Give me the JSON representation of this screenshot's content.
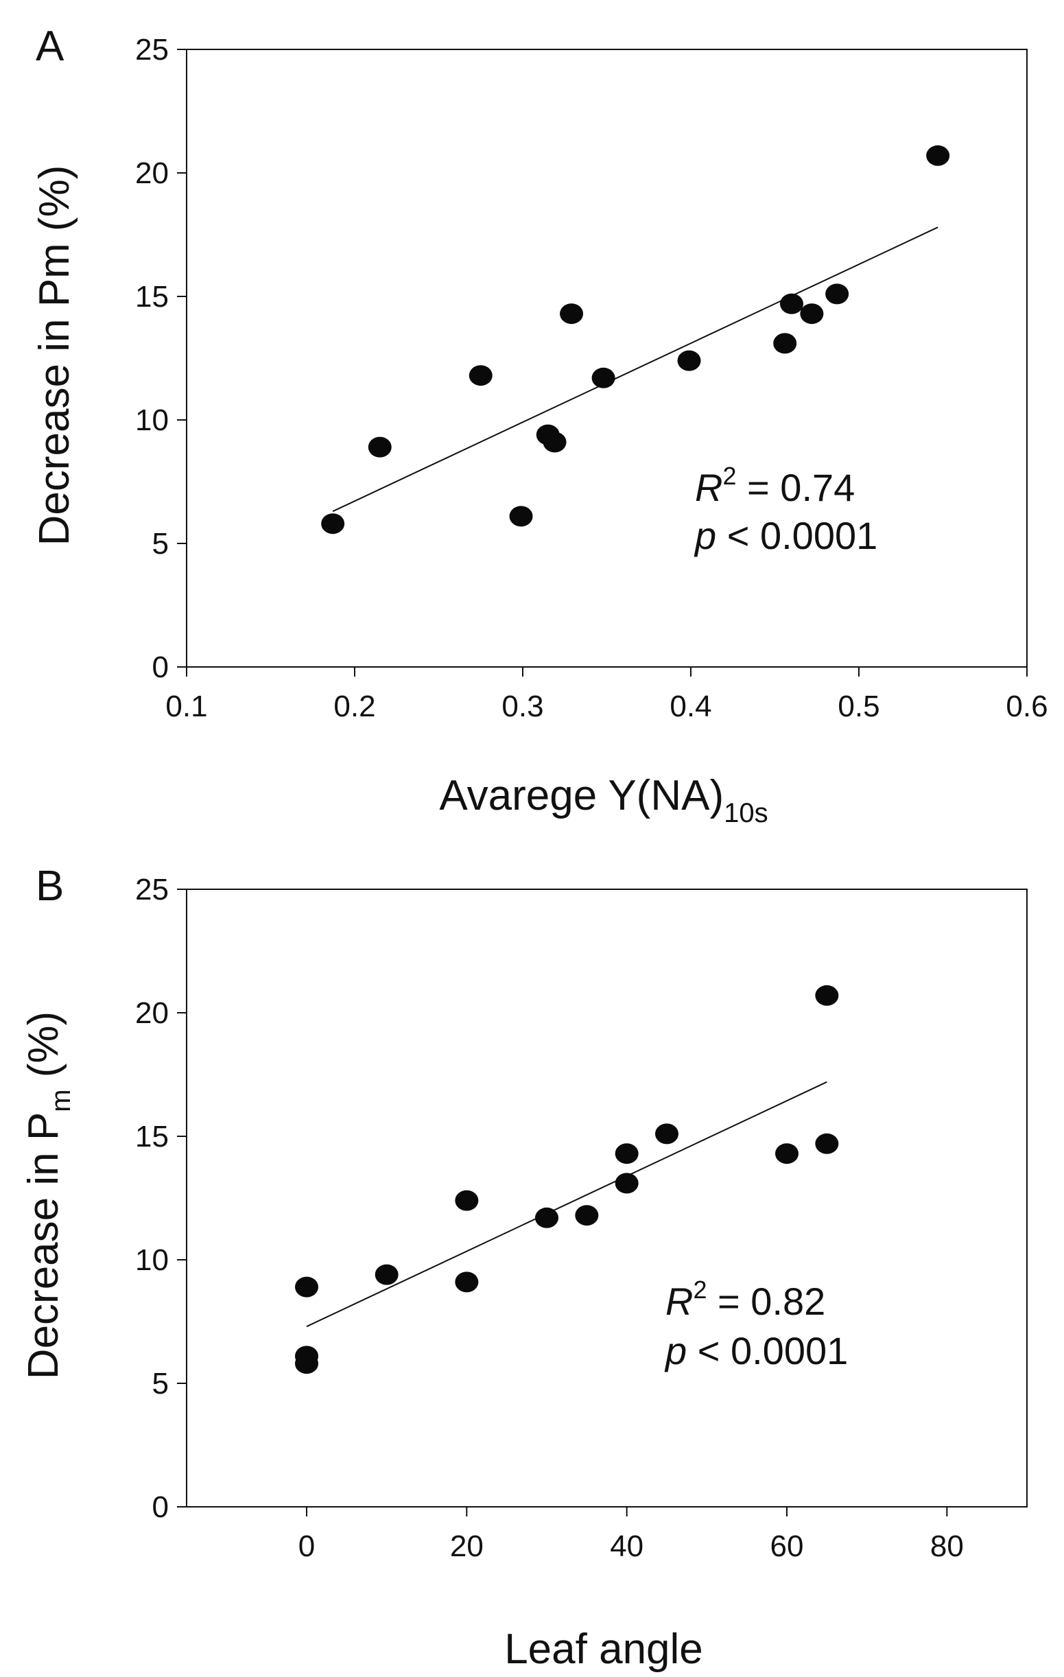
{
  "chart_data": [
    {
      "panel_label": "A",
      "type": "scatter",
      "xlabel": "Avarege Y(NA)",
      "xlabel_subscript": "10s",
      "ylabel": "Decrease in Pm (%)",
      "xlim": [
        0.1,
        0.6
      ],
      "ylim": [
        0,
        25
      ],
      "xticks": [
        0.1,
        0.2,
        0.3,
        0.4,
        0.5,
        0.6
      ],
      "xtick_labels": [
        "0.1",
        "0.2",
        "0.3",
        "0.4",
        "0.5",
        "0.6"
      ],
      "yticks": [
        0,
        5,
        10,
        15,
        20,
        25
      ],
      "ytick_labels": [
        "0",
        "5",
        "10",
        "15",
        "20",
        "25"
      ],
      "grid": false,
      "points": [
        {
          "x": 0.187,
          "y": 5.8
        },
        {
          "x": 0.215,
          "y": 8.9
        },
        {
          "x": 0.275,
          "y": 11.8
        },
        {
          "x": 0.299,
          "y": 6.1
        },
        {
          "x": 0.315,
          "y": 9.4
        },
        {
          "x": 0.319,
          "y": 9.1
        },
        {
          "x": 0.329,
          "y": 14.3
        },
        {
          "x": 0.348,
          "y": 11.7
        },
        {
          "x": 0.399,
          "y": 12.4
        },
        {
          "x": 0.456,
          "y": 13.1
        },
        {
          "x": 0.46,
          "y": 14.7
        },
        {
          "x": 0.472,
          "y": 14.3
        },
        {
          "x": 0.487,
          "y": 15.1
        },
        {
          "x": 0.547,
          "y": 20.7
        }
      ],
      "fit_line": {
        "x": [
          0.187,
          0.547
        ],
        "y": [
          6.3,
          17.8
        ]
      },
      "annotation": {
        "r2_symbol": "R",
        "r2_sup": "2",
        "r2_text": " = 0.74",
        "p_symbol": "p",
        "p_text": " < 0.0001"
      }
    },
    {
      "panel_label": "B",
      "type": "scatter",
      "xlabel": "Leaf angle",
      "ylabel": "Decrease in P",
      "ylabel_subscript": "m",
      "ylabel_suffix": " (%)",
      "xlim": [
        -15,
        90
      ],
      "ylim": [
        0,
        25
      ],
      "xticks": [
        0,
        20,
        40,
        60,
        80
      ],
      "xtick_labels": [
        "0",
        "20",
        "40",
        "60",
        "80"
      ],
      "yticks": [
        0,
        5,
        10,
        15,
        20,
        25
      ],
      "ytick_labels": [
        "0",
        "5",
        "10",
        "15",
        "20",
        "25"
      ],
      "grid": false,
      "points": [
        {
          "x": 0,
          "y": 5.8
        },
        {
          "x": 0,
          "y": 6.1
        },
        {
          "x": 0,
          "y": 8.9
        },
        {
          "x": 10,
          "y": 9.4
        },
        {
          "x": 20,
          "y": 9.1
        },
        {
          "x": 20,
          "y": 12.4
        },
        {
          "x": 30,
          "y": 11.7
        },
        {
          "x": 35,
          "y": 11.8
        },
        {
          "x": 40,
          "y": 13.1
        },
        {
          "x": 40,
          "y": 14.3
        },
        {
          "x": 45,
          "y": 15.1
        },
        {
          "x": 60,
          "y": 14.3
        },
        {
          "x": 65,
          "y": 14.7
        },
        {
          "x": 65,
          "y": 20.7
        }
      ],
      "fit_line": {
        "x": [
          0,
          65
        ],
        "y": [
          7.3,
          17.2
        ]
      },
      "annotation": {
        "r2_symbol": "R",
        "r2_sup": "2",
        "r2_text": " = 0.82",
        "p_symbol": "p",
        "p_text": " < 0.0001"
      }
    }
  ]
}
